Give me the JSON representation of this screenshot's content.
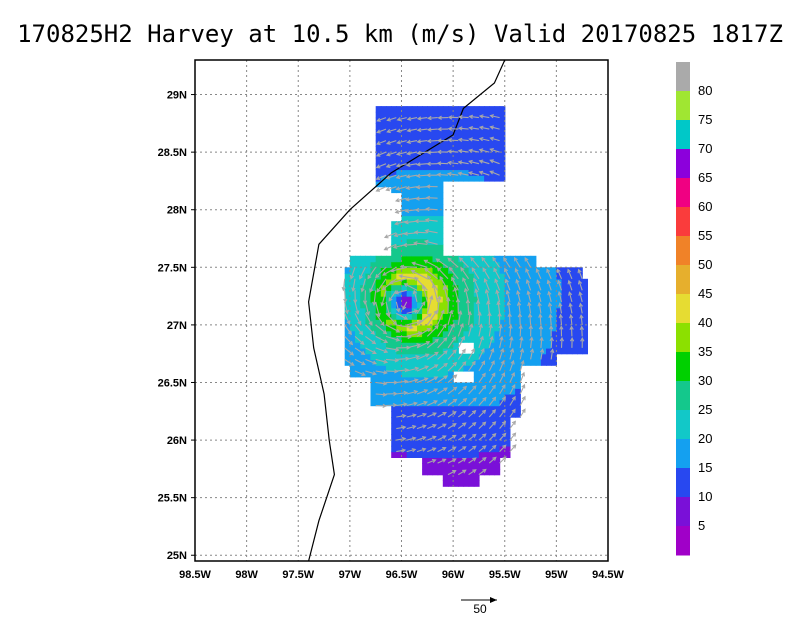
{
  "title": "170825H2 Harvey at 10.5 km (m/s) Valid 20170825 1817Z",
  "axes": {
    "lon_ticks": [
      "98.5W",
      "98W",
      "97.5W",
      "97W",
      "96.5W",
      "96W",
      "95.5W",
      "95W",
      "94.5W"
    ],
    "lat_ticks": [
      "29N",
      "28.5N",
      "28N",
      "27.5N",
      "27N",
      "26.5N",
      "26N",
      "25.5N",
      "25N"
    ],
    "lon_range": [
      -98.5,
      -94.5
    ],
    "lat_range": [
      24.95,
      29.3
    ],
    "grid": true
  },
  "colorbar": {
    "labels": [
      "5",
      "10",
      "15",
      "20",
      "25",
      "30",
      "35",
      "40",
      "45",
      "50",
      "55",
      "60",
      "65",
      "70",
      "75",
      "80"
    ],
    "colors": [
      "#a000c8",
      "#7a10d8",
      "#2848f0",
      "#14a0f0",
      "#12c8c8",
      "#14c88c",
      "#00d000",
      "#8ce000",
      "#e6dc32",
      "#e6af2d",
      "#f08228",
      "#fa3c3c",
      "#f00082",
      "#8c00dc",
      "#00c8c8",
      "#a0e632",
      "#aaaaaa"
    ]
  },
  "reference_vector": {
    "label": "50"
  },
  "map_data": {
    "coastline": [
      [
        -95.5,
        29.3
      ],
      [
        -95.6,
        29.1
      ],
      [
        -95.9,
        28.88
      ],
      [
        -96.0,
        28.65
      ],
      [
        -96.6,
        28.32
      ],
      [
        -97.0,
        28.0
      ],
      [
        -97.3,
        27.7
      ],
      [
        -97.4,
        27.2
      ],
      [
        -97.35,
        26.8
      ],
      [
        -97.25,
        26.4
      ],
      [
        -97.2,
        26.0
      ],
      [
        -97.15,
        25.7
      ],
      [
        -97.3,
        25.3
      ],
      [
        -97.4,
        24.95
      ]
    ],
    "center": [
      -96.45,
      27.2
    ],
    "max_wind_ms": 42
  }
}
